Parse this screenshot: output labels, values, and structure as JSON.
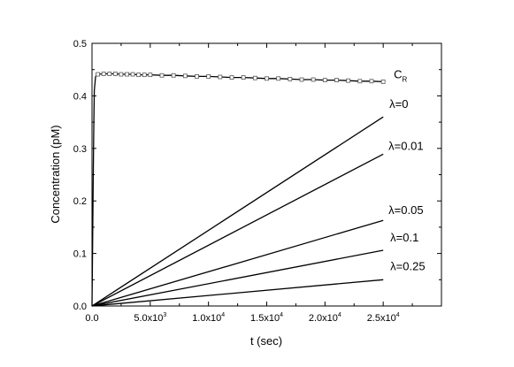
{
  "chart_data": {
    "type": "line",
    "xlabel": "t (sec)",
    "ylabel": "Concentration (pM)",
    "xlim": [
      0,
      30000
    ],
    "ylim": [
      0,
      0.5
    ],
    "x_ticks": [
      {
        "value": 0,
        "label": "0.0",
        "exp": ""
      },
      {
        "value": 5000,
        "label": "5.0x10",
        "exp": "3"
      },
      {
        "value": 10000,
        "label": "1.0x10",
        "exp": "4"
      },
      {
        "value": 15000,
        "label": "1.5x10",
        "exp": "4"
      },
      {
        "value": 20000,
        "label": "2.0x10",
        "exp": "4"
      },
      {
        "value": 25000,
        "label": "2.5x10",
        "exp": "4"
      }
    ],
    "y_ticks": [
      {
        "value": 0,
        "label": "0.0"
      },
      {
        "value": 0.1,
        "label": "0.1"
      },
      {
        "value": 0.2,
        "label": "0.2"
      },
      {
        "value": 0.3,
        "label": "0.3"
      },
      {
        "value": 0.4,
        "label": "0.4"
      },
      {
        "value": 0.5,
        "label": "0.5"
      }
    ],
    "grid": false,
    "series": [
      {
        "name": "C",
        "name_sub": "R",
        "marker": "square",
        "x": [
          0,
          50,
          100,
          150,
          200,
          300,
          400,
          500,
          1000,
          1500,
          2000,
          2500,
          3000,
          3500,
          4000,
          4500,
          5000,
          6000,
          7000,
          8000,
          9000,
          10000,
          11000,
          12000,
          13000,
          14000,
          15000,
          16000,
          17000,
          18000,
          19000,
          20000,
          21000,
          22000,
          23000,
          24000,
          25000
        ],
        "y": [
          0,
          0.12,
          0.23,
          0.34,
          0.41,
          0.436,
          0.44,
          0.441,
          0.442,
          0.442,
          0.442,
          0.441,
          0.441,
          0.441,
          0.44,
          0.44,
          0.44,
          0.439,
          0.439,
          0.438,
          0.437,
          0.437,
          0.436,
          0.435,
          0.435,
          0.434,
          0.433,
          0.433,
          0.432,
          0.431,
          0.431,
          0.43,
          0.43,
          0.429,
          0.428,
          0.428,
          0.427
        ]
      },
      {
        "name": "λ=0",
        "x": [
          0,
          25000
        ],
        "y": [
          0,
          0.36
        ]
      },
      {
        "name": "λ=0.01",
        "x": [
          0,
          25000
        ],
        "y": [
          0,
          0.289
        ]
      },
      {
        "name": "λ=0.05",
        "x": [
          0,
          25000
        ],
        "y": [
          0,
          0.163
        ]
      },
      {
        "name": "λ=0.1",
        "x": [
          0,
          25000
        ],
        "y": [
          0,
          0.106
        ]
      },
      {
        "name": "λ=0.25",
        "x": [
          0,
          25000
        ],
        "y": [
          0,
          0.05
        ]
      }
    ]
  }
}
